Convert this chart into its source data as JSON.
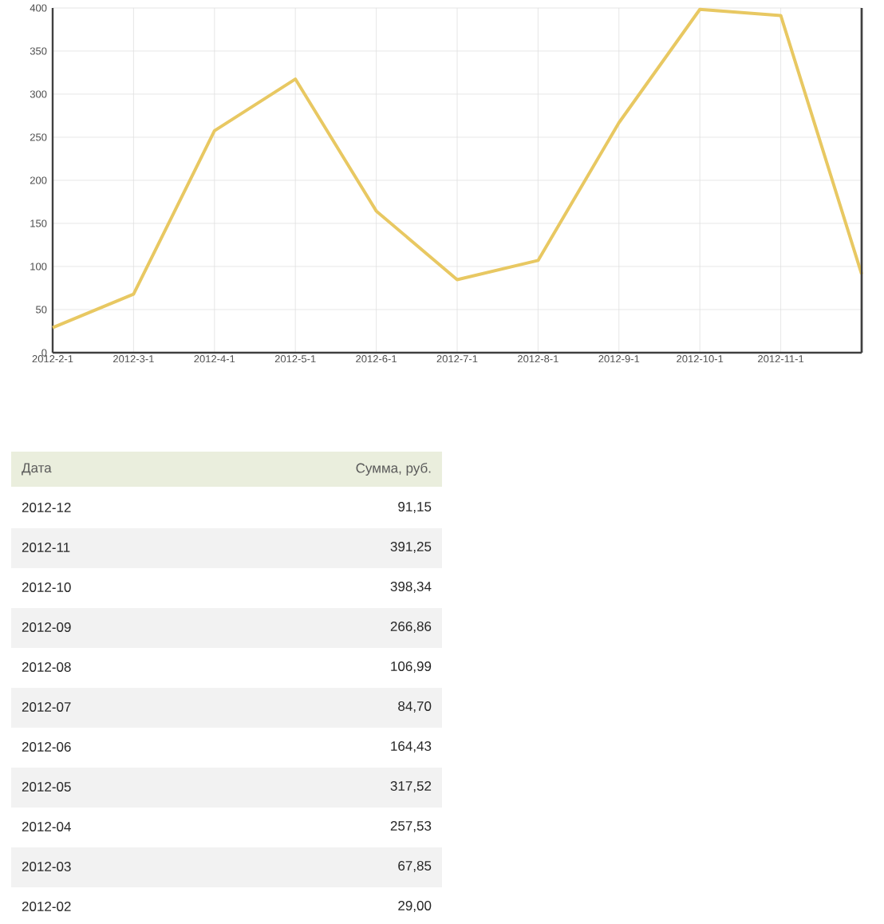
{
  "chart_data": {
    "type": "line",
    "categories": [
      "2012-2-1",
      "2012-3-1",
      "2012-4-1",
      "2012-5-1",
      "2012-6-1",
      "2012-7-1",
      "2012-8-1",
      "2012-9-1",
      "2012-10-1",
      "2012-11-1",
      null
    ],
    "values": [
      29.0,
      67.85,
      257.53,
      317.52,
      164.43,
      84.7,
      106.99,
      266.86,
      398.34,
      391.25,
      91.15
    ],
    "color": "#e8c862",
    "ylim": [
      0,
      400
    ],
    "yticks": [
      0,
      50,
      100,
      150,
      200,
      250,
      300,
      350,
      400
    ],
    "grid": true,
    "annotations": [
      "Дата",
      "Сумма, руб.",
      "2012-12",
      "91,15",
      "2012-11",
      "391,25",
      "2012-10",
      "398,34",
      "2012-09",
      "266,86",
      "2012-08",
      "106,99",
      "2012-07",
      "84,70",
      "2012-06",
      "164,43",
      "2012-05",
      "317,52",
      "2012-04",
      "257,53",
      "2012-03",
      "67,85",
      "2012-02",
      "29,00"
    ]
  }
}
